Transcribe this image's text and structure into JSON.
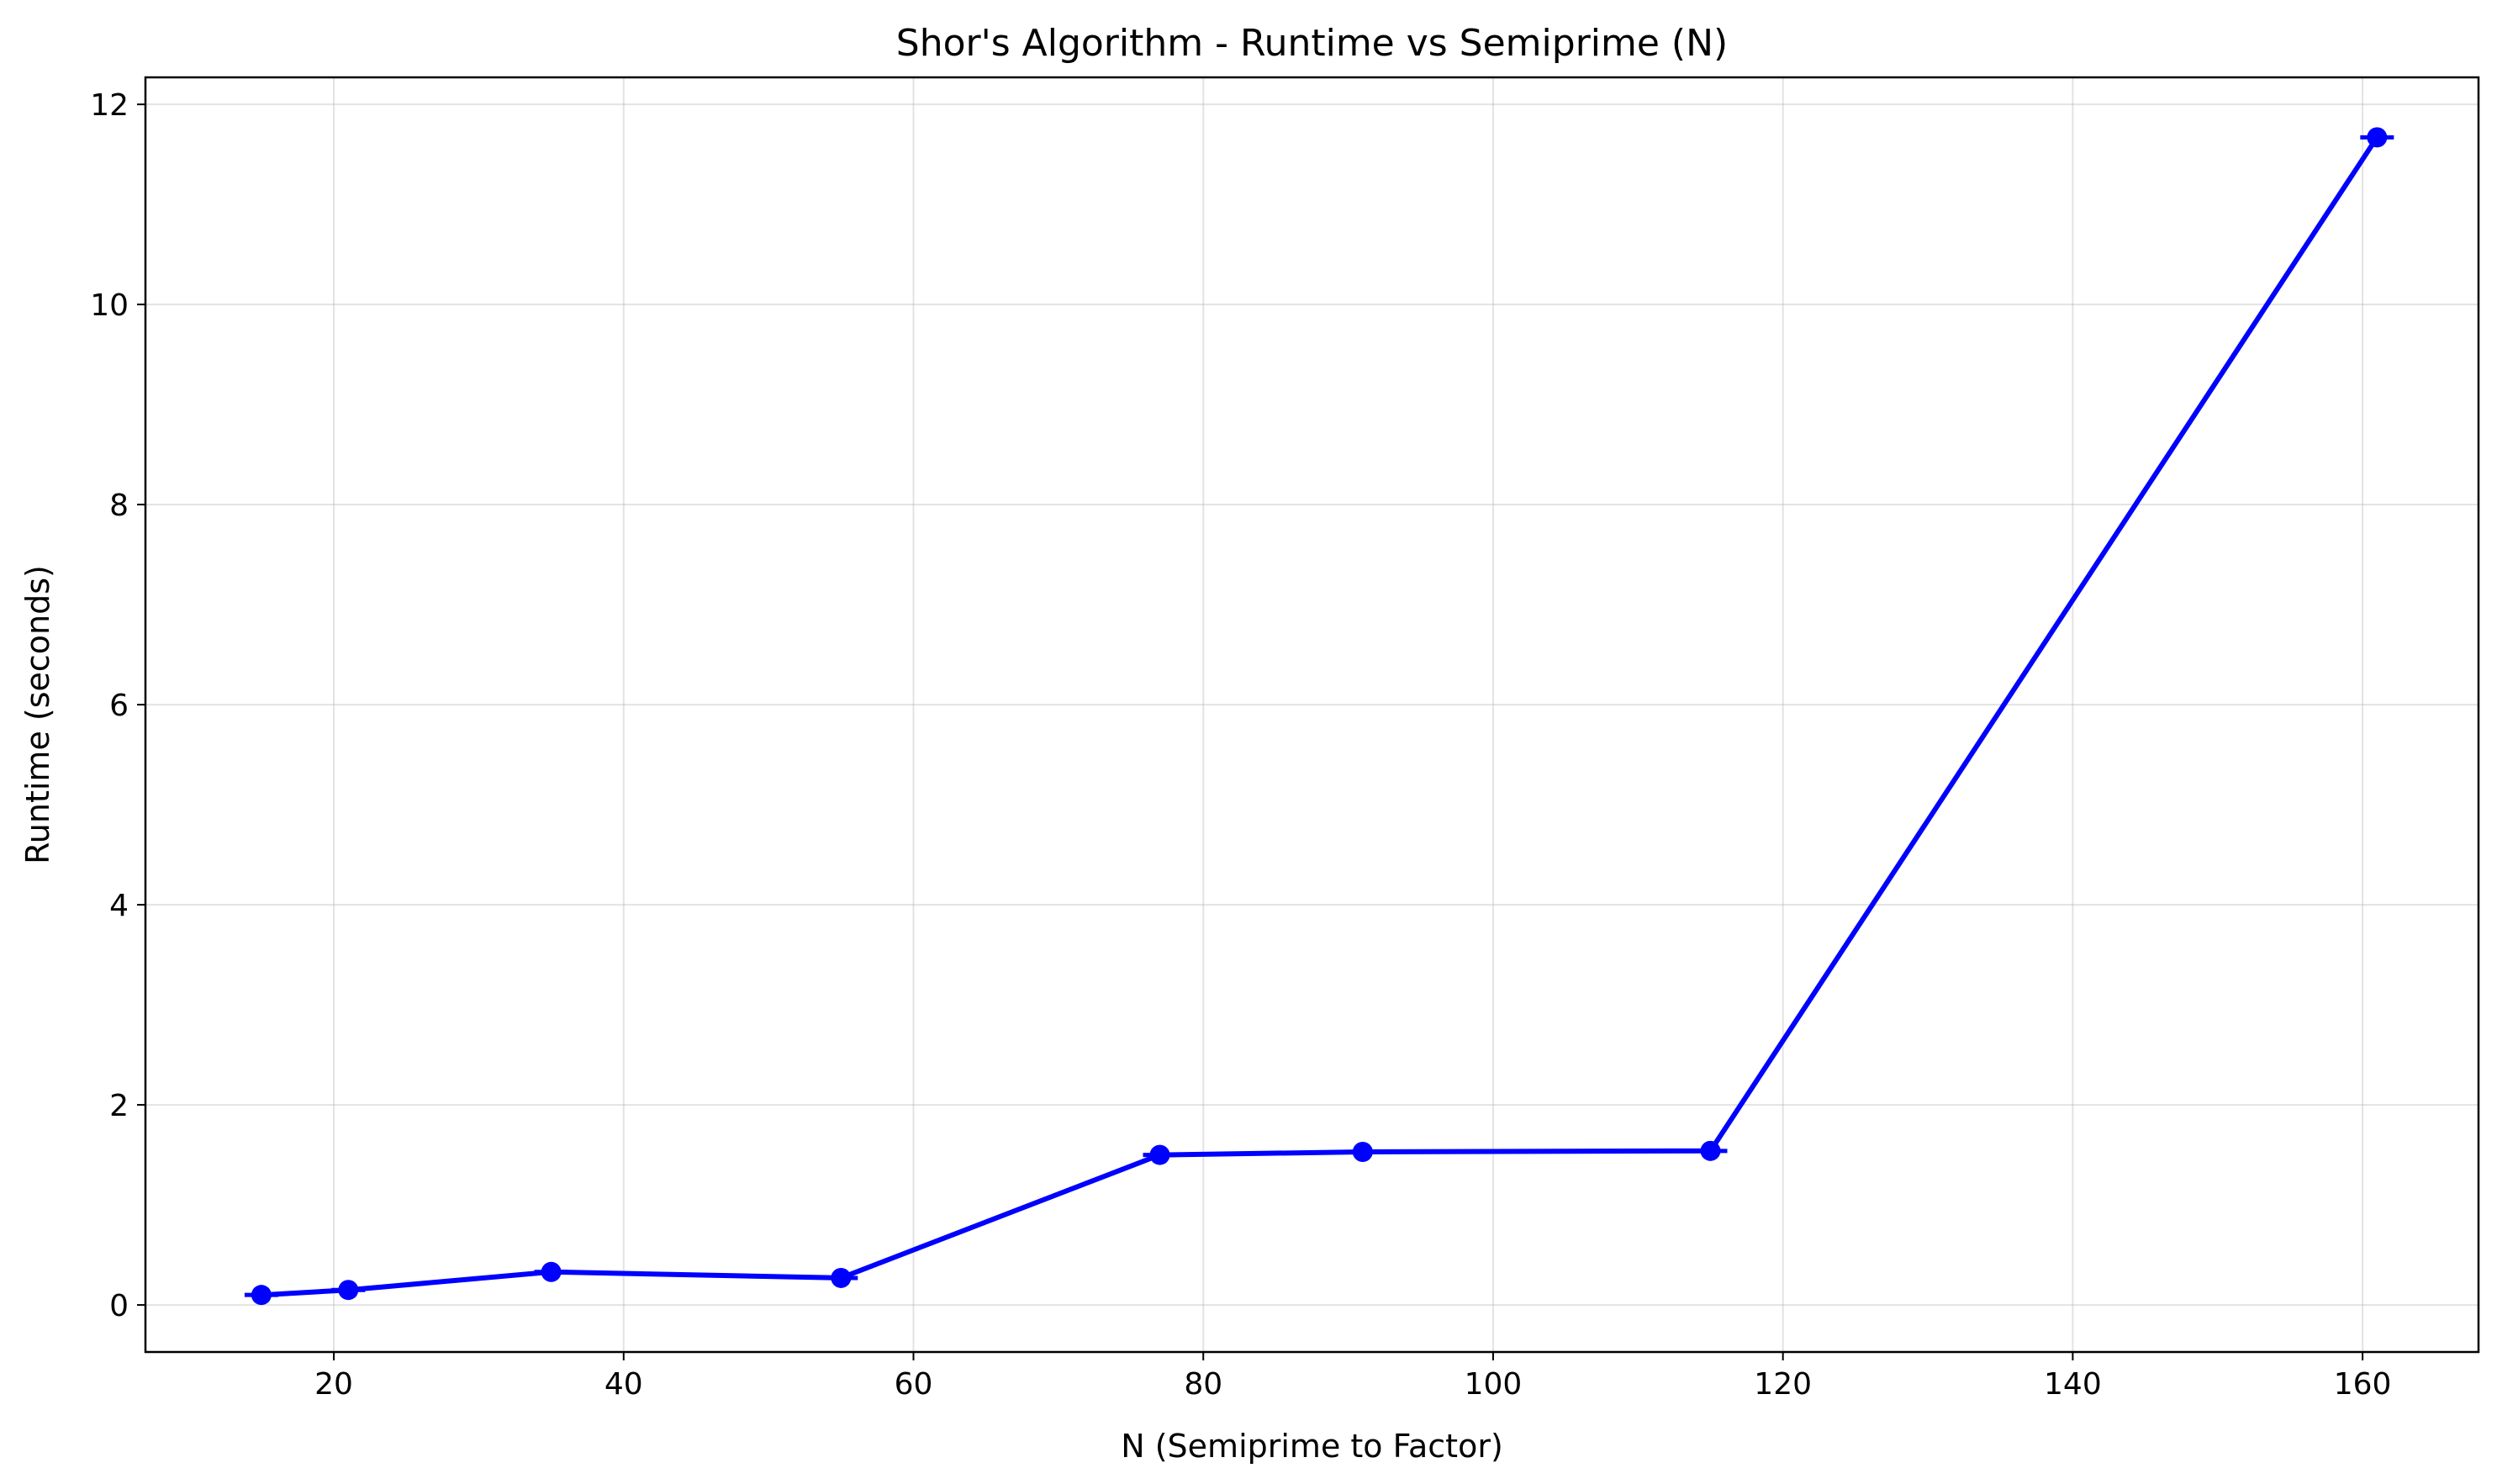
{
  "chart_data": {
    "type": "line",
    "title": "Shor's Algorithm - Runtime vs Semiprime (N)",
    "xlabel": "N (Semiprime to Factor)",
    "ylabel": "Runtime (seconds)",
    "xlim": [
      7,
      168
    ],
    "ylim": [
      -0.47,
      12.27
    ],
    "x_ticks": [
      20,
      40,
      60,
      80,
      100,
      120,
      140,
      160
    ],
    "y_ticks": [
      0,
      2,
      4,
      6,
      8,
      10,
      12
    ],
    "grid": true,
    "series": [
      {
        "color": "#0000ff",
        "x": [
          15,
          21,
          35,
          55,
          77,
          91,
          115,
          161
        ],
        "y": [
          0.1,
          0.15,
          0.33,
          0.27,
          1.5,
          1.53,
          1.54,
          11.67
        ]
      }
    ]
  }
}
